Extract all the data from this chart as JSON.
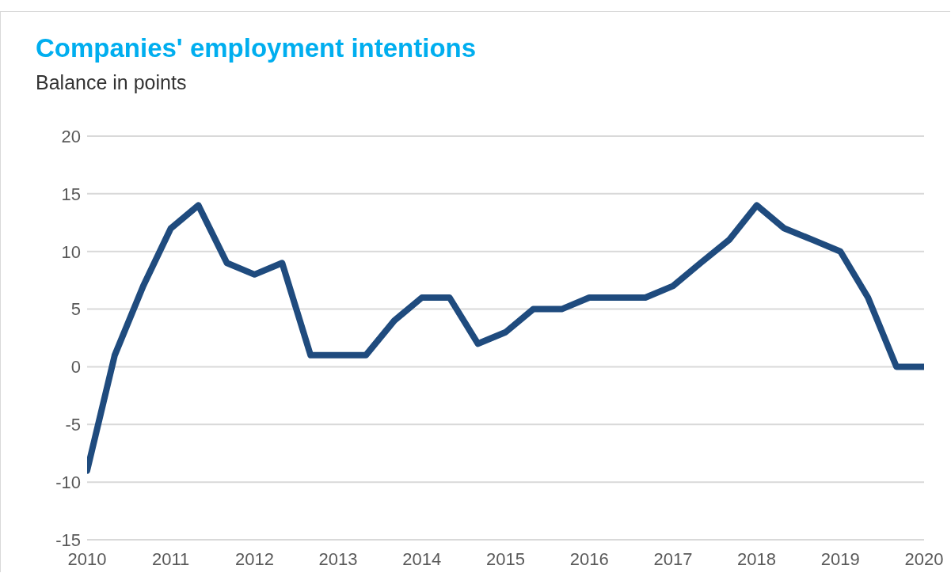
{
  "chart_data": {
    "type": "line",
    "title": "Companies' employment intentions",
    "subtitle": "Balance in points",
    "x": [
      2010,
      2010.33,
      2010.67,
      2011,
      2011.33,
      2011.67,
      2012,
      2012.33,
      2012.67,
      2013,
      2013.33,
      2013.67,
      2014,
      2014.33,
      2014.67,
      2015,
      2015.33,
      2015.67,
      2016,
      2016.33,
      2016.67,
      2017,
      2017.33,
      2017.67,
      2018,
      2018.33,
      2018.67,
      2019,
      2019.33,
      2019.67,
      2020
    ],
    "series": [
      {
        "color": "#1f4b7e",
        "values": [
          -9,
          1,
          7,
          12,
          14,
          9,
          8,
          9,
          1,
          1,
          1,
          4,
          6,
          6,
          2,
          3,
          5,
          5,
          6,
          6,
          6,
          7,
          9,
          11,
          14,
          12,
          11,
          10,
          6,
          0,
          0
        ]
      }
    ],
    "xlim": [
      2010,
      2020
    ],
    "xticks": [
      2010,
      2011,
      2012,
      2013,
      2014,
      2015,
      2016,
      2017,
      2018,
      2019,
      2020
    ],
    "ylim": [
      -15,
      20
    ],
    "yticks": [
      -15,
      -10,
      -5,
      0,
      5,
      10,
      15,
      20
    ],
    "grid": "y",
    "legend": false,
    "marker": "none",
    "line_style": "solid"
  }
}
